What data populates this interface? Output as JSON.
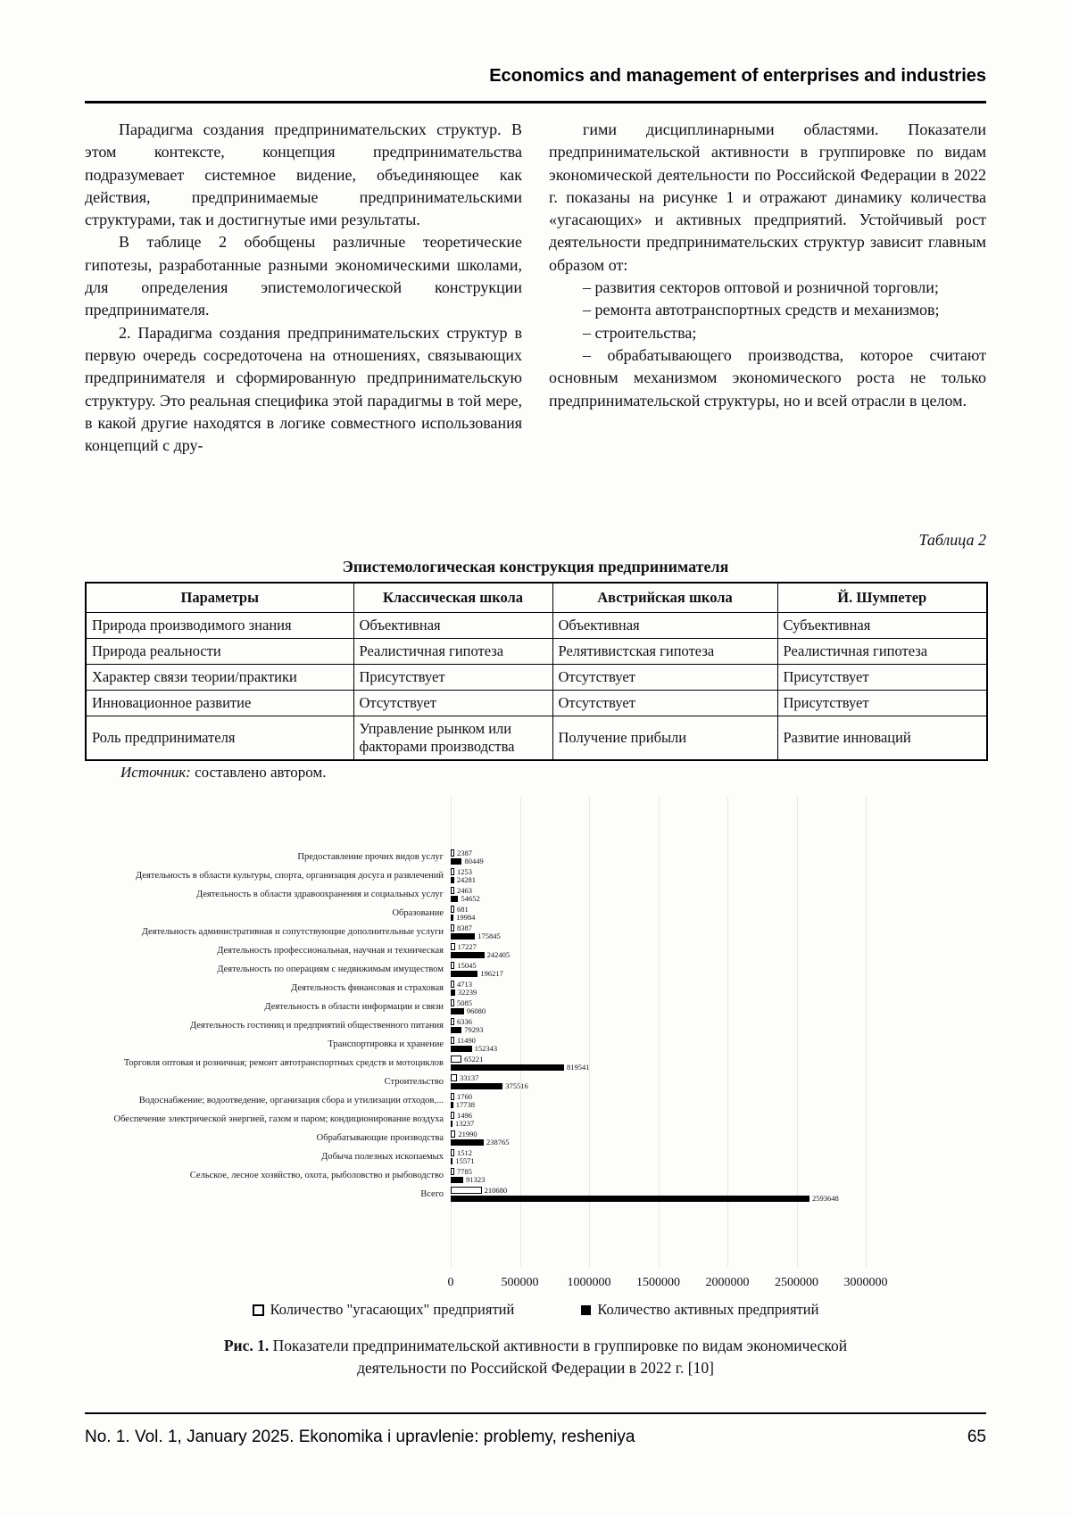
{
  "header": {
    "journal_section": "Economics and management of enterprises and industries"
  },
  "body": {
    "left_paragraphs": [
      "Парадигма создания предпринимательских структур. В этом контексте, концепция предпринимательства подразумевает системное видение, объединяющее как действия, предпринимаемые предпринимательскими структурами, так и достигнутые ими результаты.",
      "В таблице 2 обобщены различные теоретические гипотезы, разработанные разными экономическими школами, для определения эпистемологической конструкции предпринимателя.",
      "2. Парадигма создания предпринимательских структур в первую очередь сосредоточена на отношениях, связывающих предпринимателя и сформированную предпринимательскую структуру. Это реальная специфика этой парадигмы в той мере, в какой другие находятся в логике совместного использования концепций с дру-"
    ],
    "right_paragraphs": [
      "гими дисциплинарными областями. Показатели предпринимательской активности в группировке по видам экономической деятельности по Российской Федерации в 2022 г. показаны на рисунке 1 и отражают динамику количества «угасающих» и активных предприятий. Устойчивый рост деятельности предпринимательских структур зависит главным образом от:",
      "– развития секторов оптовой и розничной торговли;",
      "– ремонта автотранспортных средств и механизмов;",
      "– строительства;",
      "– обрабатывающего производства, которое считают основным механизмом экономического роста не только предпринимательской структуры, но и всей отрасли в целом."
    ]
  },
  "table": {
    "number_label": "Таблица 2",
    "title": "Эпистемологическая конструкция предпринимателя",
    "headers": [
      "Параметры",
      "Классическая школа",
      "Австрийская школа",
      "Й. Шумпетер"
    ],
    "rows": [
      [
        "Природа производимого знания",
        "Объективная",
        "Объективная",
        "Субъективная"
      ],
      [
        "Природа реальности",
        "Реалистичная гипотеза",
        "Релятивистская гипотеза",
        "Реалистичная гипотеза"
      ],
      [
        "Характер связи теории/практики",
        "Присутствует",
        "Отсутствует",
        "Присутствует"
      ],
      [
        "Инновационное развитие",
        "Отсутствует",
        "Отсутствует",
        "Присутствует"
      ],
      [
        "Роль предпринимателя",
        "Управление рынком или факторами производства",
        "Получение прибыли",
        "Развитие инноваций"
      ]
    ]
  },
  "source": {
    "label": "Источник:",
    "text": " составлено автором."
  },
  "chart_data": {
    "type": "bar",
    "orientation": "horizontal",
    "categories": [
      "Предоставление прочих видов услуг",
      "Деятельность в области культуры, спорта, организация досуга и развлечений",
      "Деятельность в области здравоохранения и социальных услуг",
      "Образование",
      "Деятельность административная и сопутствующие дополнительные услуги",
      "Деятельность профессиональная, научная и техническая",
      "Деятельность по операциям с недвижимым имуществом",
      "Деятельность финансовая и страховая",
      "Деятельность в области информации и связи",
      "Деятельность гостиниц и предприятий общественного питания",
      "Транспортировка и хранение",
      "Торговля оптовая и розничная; ремонт автотранспортных средств и мотоциклов",
      "Строительство",
      "Водоснабжение; водоотведение, организация сбора и утилизации отходов,...",
      "Обеспечение электрической энергией, газом и паром; кондиционирование воздуха",
      "Обрабатывающие производства",
      "Добыча полезных ископаемых",
      "Сельское, лесное хозяйство, охота, рыболовство и рыбоводство",
      "Всего"
    ],
    "series": [
      {
        "name": "Количество \"угасающих\" предприятий",
        "values": [
          2387,
          1253,
          2463,
          681,
          8387,
          17227,
          15045,
          4713,
          5085,
          6336,
          11490,
          65221,
          33137,
          1760,
          1496,
          21990,
          1512,
          7785,
          210680
        ]
      },
      {
        "name": "Количество активных предприятий",
        "values": [
          80449,
          24281,
          54652,
          19984,
          175845,
          242405,
          196217,
          32239,
          96080,
          79293,
          152343,
          819541,
          375516,
          17738,
          13237,
          238765,
          15571,
          91323,
          2593648
        ]
      }
    ],
    "xlim": [
      0,
      3000000
    ],
    "x_ticks": [
      0,
      500000,
      1000000,
      1500000,
      2000000,
      2500000,
      3000000
    ],
    "grid": true,
    "legend_position": "bottom",
    "title": ""
  },
  "figure": {
    "caption_prefix": "Рис. 1.",
    "caption_text": " Показатели предпринимательской активности в группировке по видам экономической деятельности по Российской Федерации в 2022 г. [10]"
  },
  "footer": {
    "issue_info": "No. 1. Vol. 1, January 2025. Ekonomika i upravlenie: problemy, resheniya",
    "page_number": "65"
  }
}
